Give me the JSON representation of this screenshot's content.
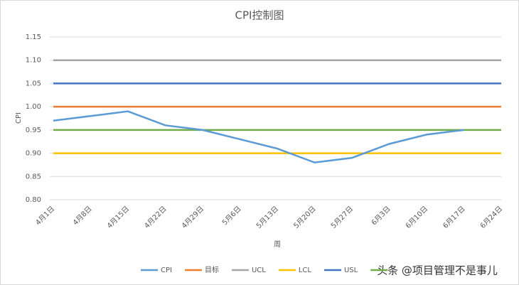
{
  "chart_data": {
    "type": "line",
    "title": "CPI控制图",
    "x_label": "周",
    "y_label": "CPI",
    "categories": [
      "4月1日",
      "4月8日",
      "4月15日",
      "4月22日",
      "4月29日",
      "5月6日",
      "5月13日",
      "5月20日",
      "5月27日",
      "6月3日",
      "6月10日",
      "6月17日",
      "6月24日"
    ],
    "series": [
      {
        "name": "CPI",
        "color": "#5b9bd5",
        "values": [
          0.97,
          0.98,
          0.99,
          0.96,
          0.95,
          0.93,
          0.91,
          0.88,
          0.89,
          0.92,
          0.94,
          0.95,
          null
        ]
      },
      {
        "name": "目标",
        "color": "#ed7d31",
        "values": [
          1,
          1,
          1,
          1,
          1,
          1,
          1,
          1,
          1,
          1,
          1,
          1,
          1
        ]
      },
      {
        "name": "UCL",
        "color": "#a5a5a5",
        "values": [
          1.1,
          1.1,
          1.1,
          1.1,
          1.1,
          1.1,
          1.1,
          1.1,
          1.1,
          1.1,
          1.1,
          1.1,
          1.1
        ]
      },
      {
        "name": "LCL",
        "color": "#ffc000",
        "values": [
          0.9,
          0.9,
          0.9,
          0.9,
          0.9,
          0.9,
          0.9,
          0.9,
          0.9,
          0.9,
          0.9,
          0.9,
          0.9
        ]
      },
      {
        "name": "USL",
        "color": "#4472c4",
        "values": [
          1.05,
          1.05,
          1.05,
          1.05,
          1.05,
          1.05,
          1.05,
          1.05,
          1.05,
          1.05,
          1.05,
          1.05,
          1.05
        ]
      },
      {
        "color": "#70ad47",
        "values": [
          0.95,
          0.95,
          0.95,
          0.95,
          0.95,
          0.95,
          0.95,
          0.95,
          0.95,
          0.95,
          0.95,
          0.95,
          0.95
        ]
      }
    ],
    "ylim": [
      0.8,
      1.15
    ],
    "yticks": [
      {
        "value": 0.8,
        "label": "0.80"
      },
      0.85,
      {
        "value": 0.9,
        "label": "0.90"
      },
      0.95,
      {
        "value": 1,
        "label": "1.00"
      },
      1.05,
      {
        "value": 1.1,
        "label": "1.10"
      },
      1.15
    ],
    "grid": true,
    "watermark": "头条 @项目管理不是事儿"
  }
}
